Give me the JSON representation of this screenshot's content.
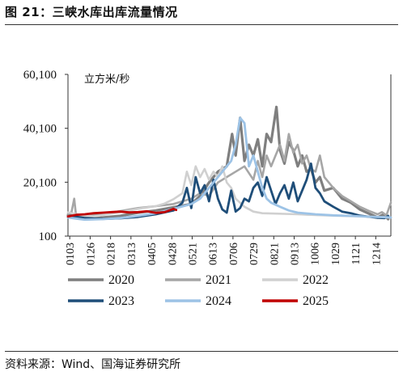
{
  "header": {
    "figure_number": "图 21：",
    "title": "三峡水库出库流量情况"
  },
  "source": "资料来源：Wind、国海证券研究所",
  "chart_data": {
    "type": "line",
    "unit_label": "立方米/秒",
    "yticks": [
      "60,100",
      "40,100",
      "20,100",
      "100"
    ],
    "ytick_values": [
      60100,
      40100,
      20100,
      100
    ],
    "ylim": [
      100,
      60100
    ],
    "xlim": [
      1,
      365
    ],
    "x_ticks": [
      "0103",
      "0126",
      "0218",
      "0313",
      "0405",
      "0428",
      "0521",
      "0613",
      "0706",
      "0729",
      "0821",
      "0913",
      "1006",
      "1029",
      "1121",
      "1214"
    ],
    "x_tick_days": [
      3,
      26,
      49,
      72,
      95,
      118,
      141,
      164,
      187,
      210,
      233,
      256,
      279,
      302,
      325,
      348
    ],
    "legend_position": "bottom",
    "series": [
      {
        "name": "2020",
        "color": "#7f7f7f",
        "width": 3.2,
        "points": [
          [
            1,
            7800
          ],
          [
            6,
            8200
          ],
          [
            10,
            7200
          ],
          [
            20,
            6700
          ],
          [
            40,
            7000
          ],
          [
            60,
            7600
          ],
          [
            80,
            8800
          ],
          [
            100,
            9600
          ],
          [
            120,
            10800
          ],
          [
            140,
            12000
          ],
          [
            150,
            15000
          ],
          [
            160,
            20000
          ],
          [
            170,
            24000
          ],
          [
            180,
            26000
          ],
          [
            186,
            38000
          ],
          [
            190,
            30000
          ],
          [
            195,
            44000
          ],
          [
            200,
            28000
          ],
          [
            205,
            34000
          ],
          [
            210,
            30000
          ],
          [
            215,
            36000
          ],
          [
            220,
            26000
          ],
          [
            225,
            38000
          ],
          [
            230,
            35000
          ],
          [
            236,
            48000
          ],
          [
            240,
            32000
          ],
          [
            245,
            27000
          ],
          [
            250,
            35000
          ],
          [
            255,
            32000
          ],
          [
            260,
            26000
          ],
          [
            265,
            30000
          ],
          [
            270,
            24000
          ],
          [
            275,
            25000
          ],
          [
            280,
            20000
          ],
          [
            285,
            22000
          ],
          [
            290,
            17000
          ],
          [
            300,
            18000
          ],
          [
            310,
            14000
          ],
          [
            320,
            12500
          ],
          [
            330,
            10000
          ],
          [
            340,
            8500
          ],
          [
            350,
            7000
          ],
          [
            357,
            8200
          ],
          [
            362,
            6400
          ]
        ]
      },
      {
        "name": "2021",
        "color": "#a6a6a6",
        "width": 2.6,
        "points": [
          [
            1,
            8400
          ],
          [
            5,
            9000
          ],
          [
            8,
            14000
          ],
          [
            10,
            8000
          ],
          [
            20,
            7600
          ],
          [
            40,
            8200
          ],
          [
            60,
            9400
          ],
          [
            80,
            10500
          ],
          [
            100,
            11200
          ],
          [
            120,
            12000
          ],
          [
            140,
            14000
          ],
          [
            150,
            16000
          ],
          [
            160,
            15000
          ],
          [
            170,
            20000
          ],
          [
            180,
            22000
          ],
          [
            190,
            24000
          ],
          [
            200,
            26000
          ],
          [
            210,
            21000
          ],
          [
            215,
            28000
          ],
          [
            220,
            22000
          ],
          [
            225,
            30000
          ],
          [
            230,
            26000
          ],
          [
            240,
            34000
          ],
          [
            245,
            28000
          ],
          [
            250,
            38000
          ],
          [
            255,
            31000
          ],
          [
            260,
            34000
          ],
          [
            265,
            27000
          ],
          [
            270,
            30000
          ],
          [
            275,
            25000
          ],
          [
            280,
            24000
          ],
          [
            285,
            30000
          ],
          [
            290,
            22000
          ],
          [
            300,
            18000
          ],
          [
            310,
            15000
          ],
          [
            320,
            13000
          ],
          [
            330,
            11000
          ],
          [
            340,
            9500
          ],
          [
            350,
            8200
          ],
          [
            355,
            9000
          ],
          [
            360,
            7800
          ],
          [
            365,
            12500
          ]
        ]
      },
      {
        "name": "2022",
        "color": "#d0d0d0",
        "width": 2.6,
        "points": [
          [
            1,
            8900
          ],
          [
            10,
            8300
          ],
          [
            20,
            7800
          ],
          [
            30,
            7400
          ],
          [
            40,
            7900
          ],
          [
            60,
            9000
          ],
          [
            80,
            10200
          ],
          [
            100,
            11200
          ],
          [
            110,
            12200
          ],
          [
            120,
            13800
          ],
          [
            130,
            16000
          ],
          [
            135,
            24000
          ],
          [
            140,
            19000
          ],
          [
            145,
            26000
          ],
          [
            150,
            22000
          ],
          [
            155,
            25000
          ],
          [
            160,
            21000
          ],
          [
            165,
            24000
          ],
          [
            170,
            22000
          ],
          [
            175,
            26000
          ],
          [
            180,
            20000
          ],
          [
            185,
            18000
          ],
          [
            190,
            14000
          ],
          [
            200,
            11000
          ],
          [
            210,
            9200
          ],
          [
            220,
            8600
          ],
          [
            240,
            8400
          ],
          [
            260,
            8200
          ],
          [
            280,
            7900
          ],
          [
            300,
            7700
          ],
          [
            320,
            7500
          ],
          [
            340,
            7300
          ],
          [
            360,
            7100
          ],
          [
            365,
            7000
          ]
        ]
      },
      {
        "name": "2023",
        "color": "#1f4e79",
        "width": 2.8,
        "points": [
          [
            1,
            7100
          ],
          [
            10,
            7300
          ],
          [
            20,
            6800
          ],
          [
            40,
            6500
          ],
          [
            60,
            6700
          ],
          [
            80,
            7200
          ],
          [
            100,
            8200
          ],
          [
            120,
            9600
          ],
          [
            130,
            12500
          ],
          [
            135,
            18000
          ],
          [
            140,
            10500
          ],
          [
            145,
            22000
          ],
          [
            150,
            16000
          ],
          [
            155,
            19000
          ],
          [
            160,
            13000
          ],
          [
            165,
            21000
          ],
          [
            170,
            14000
          ],
          [
            175,
            10000
          ],
          [
            180,
            8800
          ],
          [
            185,
            17000
          ],
          [
            190,
            9200
          ],
          [
            195,
            10500
          ],
          [
            200,
            14000
          ],
          [
            205,
            13000
          ],
          [
            210,
            18000
          ],
          [
            215,
            20000
          ],
          [
            220,
            15000
          ],
          [
            225,
            22000
          ],
          [
            230,
            17000
          ],
          [
            235,
            12000
          ],
          [
            240,
            16000
          ],
          [
            245,
            19000
          ],
          [
            250,
            14000
          ],
          [
            255,
            20000
          ],
          [
            260,
            13000
          ],
          [
            265,
            17000
          ],
          [
            270,
            21000
          ],
          [
            275,
            27000
          ],
          [
            280,
            18000
          ],
          [
            285,
            16000
          ],
          [
            290,
            13000
          ],
          [
            300,
            11000
          ],
          [
            310,
            9200
          ],
          [
            320,
            8600
          ],
          [
            330,
            7700
          ],
          [
            340,
            7300
          ],
          [
            350,
            6900
          ],
          [
            358,
            6800
          ],
          [
            362,
            7600
          ]
        ]
      },
      {
        "name": "2024",
        "color": "#9dc3e6",
        "width": 2.8,
        "points": [
          [
            1,
            7000
          ],
          [
            10,
            6600
          ],
          [
            20,
            6200
          ],
          [
            40,
            6400
          ],
          [
            60,
            6800
          ],
          [
            80,
            7600
          ],
          [
            100,
            8600
          ],
          [
            120,
            10200
          ],
          [
            140,
            12000
          ],
          [
            150,
            14000
          ],
          [
            160,
            18000
          ],
          [
            170,
            22000
          ],
          [
            180,
            26000
          ],
          [
            185,
            28000
          ],
          [
            190,
            34000
          ],
          [
            195,
            44000
          ],
          [
            200,
            42000
          ],
          [
            205,
            26000
          ],
          [
            210,
            30000
          ],
          [
            215,
            24000
          ],
          [
            220,
            18000
          ],
          [
            225,
            14000
          ],
          [
            230,
            12500
          ],
          [
            240,
            11000
          ],
          [
            250,
            9600
          ],
          [
            260,
            8800
          ],
          [
            280,
            8200
          ],
          [
            300,
            7800
          ],
          [
            320,
            7600
          ],
          [
            340,
            7300
          ],
          [
            360,
            7100
          ],
          [
            365,
            7000
          ]
        ]
      },
      {
        "name": "2025",
        "color": "#c00000",
        "width": 2.8,
        "points": [
          [
            1,
            7400
          ],
          [
            10,
            8000
          ],
          [
            20,
            8200
          ],
          [
            30,
            8600
          ],
          [
            40,
            8800
          ],
          [
            50,
            9000
          ],
          [
            60,
            9200
          ],
          [
            70,
            8900
          ],
          [
            80,
            9000
          ],
          [
            90,
            9300
          ],
          [
            100,
            8700
          ],
          [
            110,
            9000
          ],
          [
            115,
            9600
          ],
          [
            120,
            10200
          ],
          [
            123,
            9800
          ]
        ]
      }
    ]
  }
}
